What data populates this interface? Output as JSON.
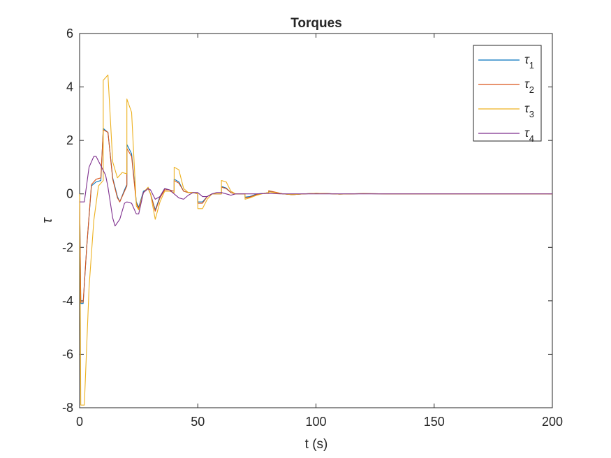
{
  "chart_data": {
    "type": "line",
    "title": "Torques",
    "xlabel": "t (s)",
    "ylabel": "τ",
    "xlim": [
      0,
      200
    ],
    "ylim": [
      -8,
      6
    ],
    "xticks": [
      0,
      50,
      100,
      150,
      200
    ],
    "yticks": [
      -8,
      -6,
      -4,
      -2,
      0,
      2,
      4,
      6
    ],
    "grid": false,
    "legend_position": "top-right",
    "series": [
      {
        "name": "τ",
        "subscript": "1",
        "color": "#0072BD",
        "points": [
          [
            0,
            0
          ],
          [
            0.5,
            -4.1
          ],
          [
            1.5,
            -4.1
          ],
          [
            3,
            -2
          ],
          [
            5,
            0.3
          ],
          [
            7,
            0.45
          ],
          [
            9,
            0.5
          ],
          [
            10,
            2.45
          ],
          [
            12,
            2.3
          ],
          [
            14,
            0.6
          ],
          [
            16,
            -0.1
          ],
          [
            17,
            -0.3
          ],
          [
            19,
            0.15
          ],
          [
            20,
            0.35
          ],
          [
            20,
            1.85
          ],
          [
            22,
            1.5
          ],
          [
            24,
            -0.3
          ],
          [
            25,
            -0.5
          ],
          [
            27,
            0.1
          ],
          [
            29,
            0.2
          ],
          [
            30,
            0
          ],
          [
            32,
            -0.6
          ],
          [
            34,
            -0.1
          ],
          [
            36,
            0.2
          ],
          [
            38,
            0.15
          ],
          [
            40,
            0.1
          ],
          [
            40,
            0.55
          ],
          [
            42,
            0.45
          ],
          [
            44,
            0.1
          ],
          [
            46,
            0.05
          ],
          [
            48,
            0.05
          ],
          [
            50,
            0
          ],
          [
            50,
            -0.3
          ],
          [
            52,
            -0.3
          ],
          [
            54,
            -0.1
          ],
          [
            56,
            0
          ],
          [
            58,
            0
          ],
          [
            60,
            0
          ],
          [
            60,
            0.28
          ],
          [
            62,
            0.22
          ],
          [
            64,
            0.05
          ],
          [
            66,
            0
          ],
          [
            68,
            0
          ],
          [
            70,
            0
          ],
          [
            70,
            -0.12
          ],
          [
            72,
            -0.1
          ],
          [
            75,
            0
          ],
          [
            78,
            0.02
          ],
          [
            80,
            0.05
          ],
          [
            80,
            0.1
          ],
          [
            83,
            0.05
          ],
          [
            86,
            0
          ],
          [
            90,
            -0.03
          ],
          [
            95,
            0
          ],
          [
            100,
            0.02
          ],
          [
            105,
            0.01
          ],
          [
            110,
            -0.01
          ],
          [
            115,
            0
          ],
          [
            120,
            0.01
          ],
          [
            130,
            0
          ],
          [
            140,
            0
          ],
          [
            160,
            0
          ],
          [
            200,
            0
          ]
        ]
      },
      {
        "name": "τ",
        "subscript": "2",
        "color": "#D95319",
        "points": [
          [
            0,
            0
          ],
          [
            0.5,
            -4.05
          ],
          [
            1.5,
            -4.05
          ],
          [
            3,
            -2
          ],
          [
            5,
            0.35
          ],
          [
            7,
            0.55
          ],
          [
            9,
            0.6
          ],
          [
            10,
            2.4
          ],
          [
            12,
            2.3
          ],
          [
            14,
            0.55
          ],
          [
            16,
            -0.15
          ],
          [
            17,
            -0.3
          ],
          [
            19,
            0.1
          ],
          [
            20,
            0.3
          ],
          [
            20,
            1.7
          ],
          [
            22,
            1.4
          ],
          [
            24,
            -0.35
          ],
          [
            25,
            -0.55
          ],
          [
            27,
            0.05
          ],
          [
            29,
            0.2
          ],
          [
            30,
            0
          ],
          [
            32,
            -0.65
          ],
          [
            34,
            -0.15
          ],
          [
            36,
            0.15
          ],
          [
            38,
            0.15
          ],
          [
            40,
            0.1
          ],
          [
            40,
            0.5
          ],
          [
            42,
            0.4
          ],
          [
            44,
            0.1
          ],
          [
            46,
            0.05
          ],
          [
            48,
            0.05
          ],
          [
            50,
            0
          ],
          [
            50,
            -0.35
          ],
          [
            52,
            -0.35
          ],
          [
            54,
            -0.1
          ],
          [
            56,
            0
          ],
          [
            58,
            0
          ],
          [
            60,
            0
          ],
          [
            60,
            0.25
          ],
          [
            62,
            0.2
          ],
          [
            64,
            0.05
          ],
          [
            66,
            0
          ],
          [
            68,
            0
          ],
          [
            70,
            0
          ],
          [
            70,
            -0.15
          ],
          [
            72,
            -0.12
          ],
          [
            75,
            -0.02
          ],
          [
            78,
            0.02
          ],
          [
            80,
            0.05
          ],
          [
            80,
            0.12
          ],
          [
            83,
            0.06
          ],
          [
            86,
            0
          ],
          [
            90,
            -0.03
          ],
          [
            95,
            0
          ],
          [
            100,
            0.02
          ],
          [
            105,
            0.01
          ],
          [
            110,
            -0.01
          ],
          [
            115,
            0
          ],
          [
            120,
            0.01
          ],
          [
            130,
            0
          ],
          [
            140,
            0
          ],
          [
            160,
            0
          ],
          [
            200,
            0
          ]
        ]
      },
      {
        "name": "τ",
        "subscript": "3",
        "color": "#EDB120",
        "points": [
          [
            0,
            0
          ],
          [
            0.5,
            -7.9
          ],
          [
            2,
            -7.9
          ],
          [
            4,
            -3.5
          ],
          [
            6,
            -1
          ],
          [
            8,
            0.3
          ],
          [
            10,
            0.5
          ],
          [
            10,
            4.25
          ],
          [
            12,
            4.45
          ],
          [
            14,
            1.2
          ],
          [
            16,
            0.6
          ],
          [
            18,
            0.8
          ],
          [
            20,
            0.75
          ],
          [
            20,
            3.55
          ],
          [
            22,
            3.05
          ],
          [
            24,
            -0.45
          ],
          [
            25,
            -0.6
          ],
          [
            27,
            0.05
          ],
          [
            29,
            0.25
          ],
          [
            30,
            0
          ],
          [
            32,
            -0.95
          ],
          [
            34,
            -0.3
          ],
          [
            36,
            0.1
          ],
          [
            38,
            0.1
          ],
          [
            40,
            0.05
          ],
          [
            40,
            1
          ],
          [
            42,
            0.9
          ],
          [
            44,
            0.2
          ],
          [
            46,
            0.05
          ],
          [
            48,
            0.05
          ],
          [
            50,
            0
          ],
          [
            50,
            -0.55
          ],
          [
            52,
            -0.55
          ],
          [
            54,
            -0.2
          ],
          [
            56,
            0
          ],
          [
            58,
            0
          ],
          [
            60,
            0
          ],
          [
            60,
            0.5
          ],
          [
            62,
            0.45
          ],
          [
            64,
            0.1
          ],
          [
            66,
            0
          ],
          [
            68,
            0
          ],
          [
            70,
            0
          ],
          [
            70,
            -0.2
          ],
          [
            72,
            -0.15
          ],
          [
            75,
            -0.05
          ],
          [
            78,
            0.02
          ],
          [
            80,
            0.05
          ],
          [
            80,
            0.08
          ],
          [
            83,
            0.04
          ],
          [
            86,
            0
          ],
          [
            90,
            -0.03
          ],
          [
            95,
            0
          ],
          [
            100,
            0.02
          ],
          [
            105,
            0.01
          ],
          [
            110,
            -0.01
          ],
          [
            115,
            0
          ],
          [
            120,
            0.01
          ],
          [
            130,
            0
          ],
          [
            140,
            0
          ],
          [
            160,
            0
          ],
          [
            200,
            0
          ]
        ]
      },
      {
        "name": "τ",
        "subscript": "4",
        "color": "#7E2F8E",
        "points": [
          [
            0,
            -0.3
          ],
          [
            2,
            -0.3
          ],
          [
            4,
            1
          ],
          [
            6,
            1.4
          ],
          [
            7,
            1.4
          ],
          [
            9,
            1.05
          ],
          [
            11,
            0.7
          ],
          [
            12,
            0.25
          ],
          [
            14,
            -0.9
          ],
          [
            15,
            -1.2
          ],
          [
            17,
            -0.95
          ],
          [
            19,
            -0.35
          ],
          [
            20,
            -0.3
          ],
          [
            22,
            -0.35
          ],
          [
            24,
            -0.75
          ],
          [
            25,
            -0.75
          ],
          [
            27,
            0.05
          ],
          [
            29,
            0.2
          ],
          [
            30,
            0.15
          ],
          [
            32,
            -0.2
          ],
          [
            34,
            -0.1
          ],
          [
            36,
            0.2
          ],
          [
            38,
            0.15
          ],
          [
            40,
            0
          ],
          [
            42,
            -0.15
          ],
          [
            44,
            -0.2
          ],
          [
            46,
            -0.05
          ],
          [
            48,
            0.05
          ],
          [
            50,
            0.05
          ],
          [
            52,
            -0.1
          ],
          [
            54,
            -0.1
          ],
          [
            56,
            0
          ],
          [
            58,
            0.05
          ],
          [
            60,
            0.05
          ],
          [
            62,
            0
          ],
          [
            64,
            -0.05
          ],
          [
            66,
            0
          ],
          [
            70,
            0
          ],
          [
            75,
            0
          ],
          [
            80,
            0.02
          ],
          [
            85,
            0
          ],
          [
            90,
            0
          ],
          [
            100,
            0
          ],
          [
            200,
            0
          ]
        ]
      }
    ]
  }
}
